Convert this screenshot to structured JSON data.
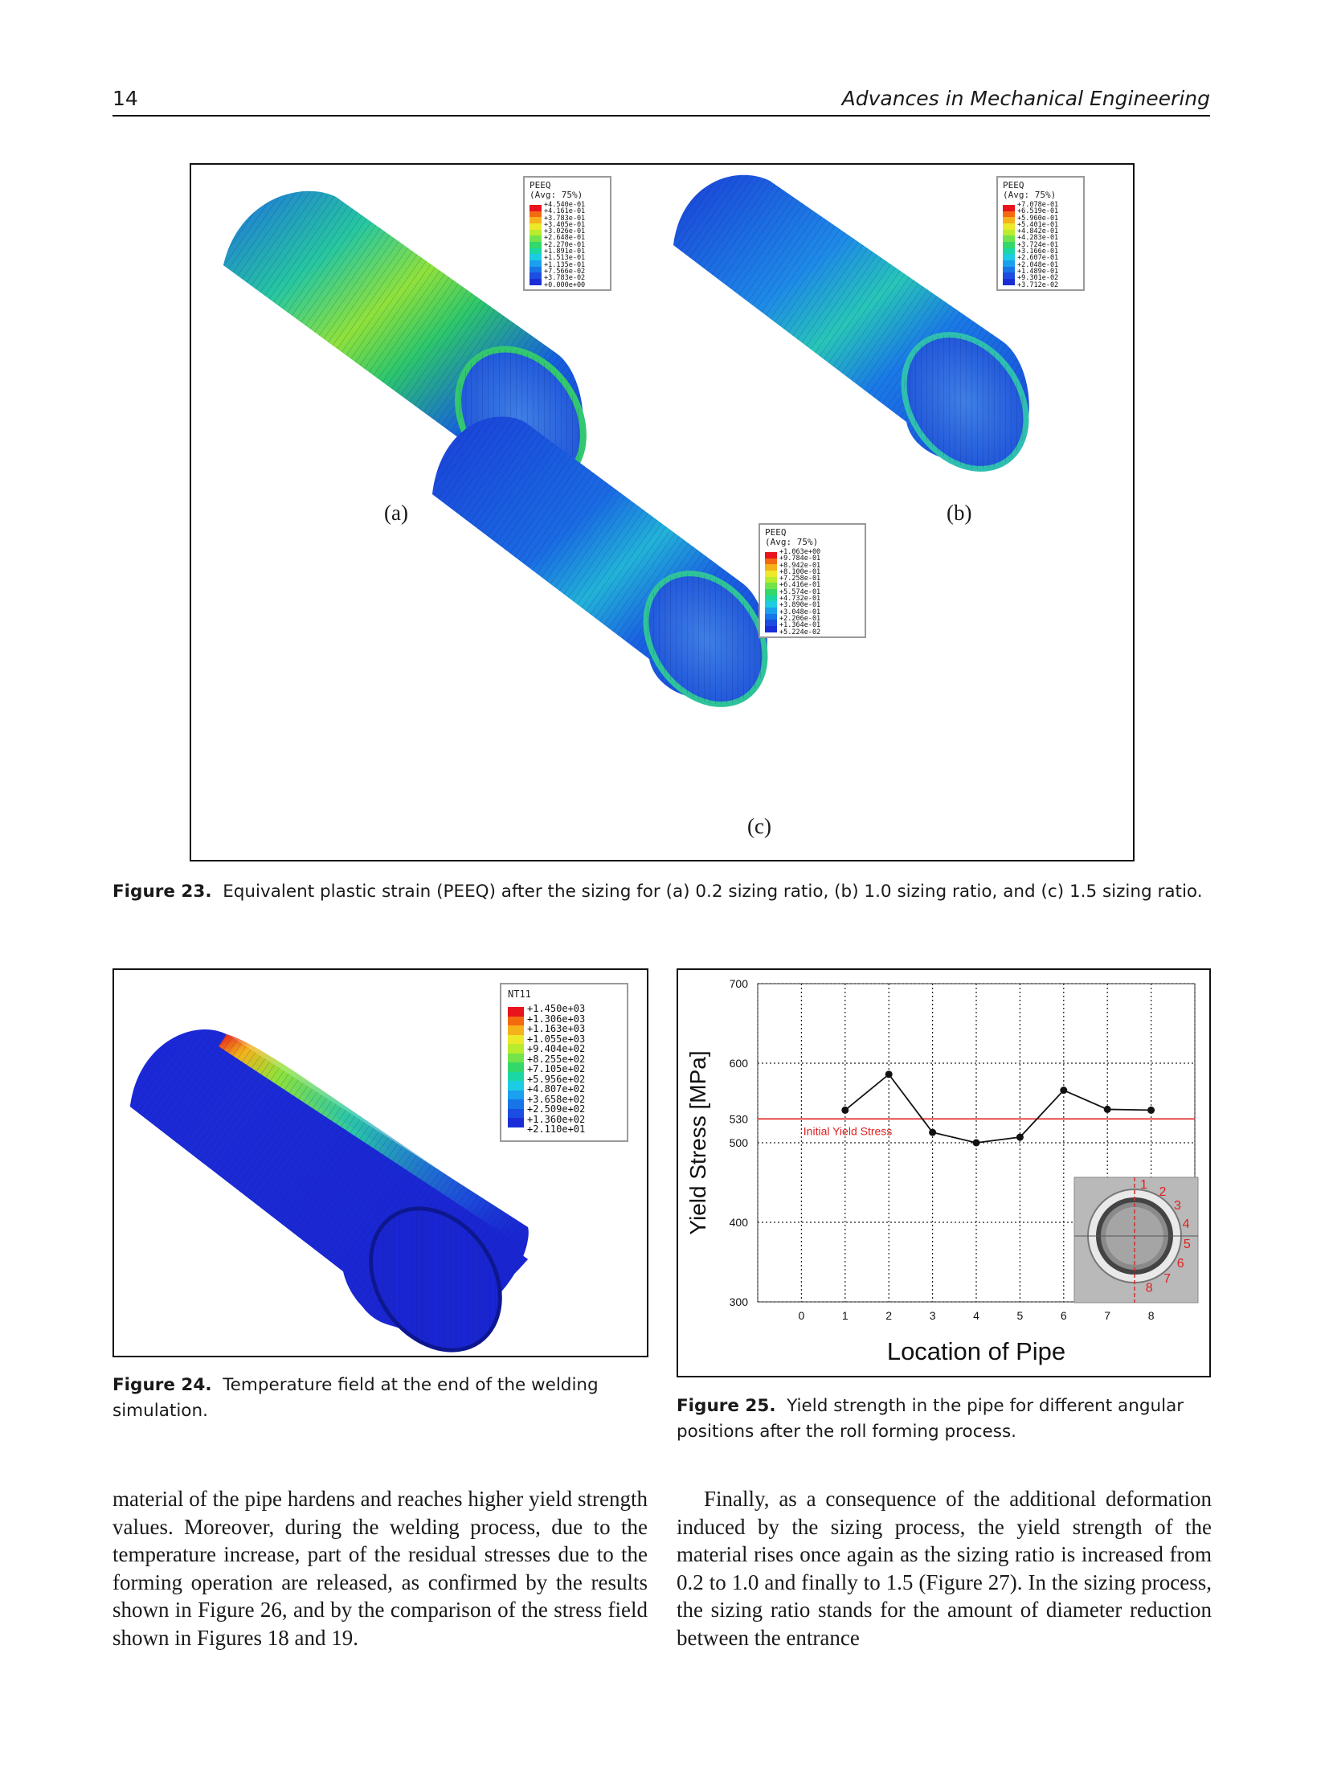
{
  "header": {
    "page_number": "14",
    "journal": "Advances in Mechanical Engineering"
  },
  "figure23": {
    "panels": [
      {
        "label": "(a)",
        "legend_title": "PEEQ",
        "legend_subtitle": "(Avg: 75%)",
        "values": [
          "+4.540e-01",
          "+4.161e-01",
          "+3.783e-01",
          "+3.405e-01",
          "+3.026e-01",
          "+2.648e-01",
          "+2.270e-01",
          "+1.891e-01",
          "+1.513e-01",
          "+1.135e-01",
          "+7.566e-02",
          "+3.783e-02",
          "+0.000e+00"
        ]
      },
      {
        "label": "(b)",
        "legend_title": "PEEQ",
        "legend_subtitle": "(Avg: 75%)",
        "values": [
          "+7.078e-01",
          "+6.519e-01",
          "+5.960e-01",
          "+5.401e-01",
          "+4.842e-01",
          "+4.283e-01",
          "+3.724e-01",
          "+3.166e-01",
          "+2.607e-01",
          "+2.048e-01",
          "+1.489e-01",
          "+9.301e-02",
          "+3.712e-02"
        ]
      },
      {
        "label": "(c)",
        "legend_title": "PEEQ",
        "legend_subtitle": "(Avg: 75%)",
        "values": [
          "+1.063e+00",
          "+9.784e-01",
          "+8.942e-01",
          "+8.100e-01",
          "+7.258e-01",
          "+6.416e-01",
          "+5.574e-01",
          "+4.732e-01",
          "+3.890e-01",
          "+3.048e-01",
          "+2.206e-01",
          "+1.364e-01",
          "+5.224e-02"
        ]
      }
    ],
    "caption_label": "Figure 23.",
    "caption_text": "Equivalent plastic strain (PEEQ) after the sizing for (a) 0.2 sizing ratio, (b) 1.0 sizing ratio, and (c) 1.5 sizing ratio."
  },
  "figure24": {
    "legend_title": "NT11",
    "values": [
      "+1.450e+03",
      "+1.306e+03",
      "+1.163e+03",
      "+1.055e+03",
      "+9.404e+02",
      "+8.255e+02",
      "+7.105e+02",
      "+5.956e+02",
      "+4.807e+02",
      "+3.658e+02",
      "+2.509e+02",
      "+1.360e+02",
      "+2.110e+01"
    ],
    "caption_label": "Figure 24.",
    "caption_text": "Temperature field at the end of the welding simulation."
  },
  "figure25": {
    "caption_label": "Figure 25.",
    "caption_text": "Yield strength in the pipe for different angular positions after the roll forming process.",
    "inset_labels": [
      "1",
      "2",
      "3",
      "4",
      "5",
      "6",
      "7",
      "8"
    ]
  },
  "chart_data": {
    "type": "line",
    "title": "",
    "xlabel": "Location of Pipe",
    "ylabel": "Yield Stress [MPa]",
    "x_ticks": [
      "0",
      "1",
      "2",
      "3",
      "4",
      "5",
      "6",
      "7",
      "8"
    ],
    "y_ticks": [
      "300",
      "400",
      "500",
      "530",
      "600",
      "700"
    ],
    "xlim": [
      -1,
      9
    ],
    "ylim": [
      300,
      700
    ],
    "grid": true,
    "series": [
      {
        "x": [
          1,
          2,
          3,
          4,
          5,
          6,
          7,
          8
        ],
        "values": [
          541,
          586,
          513,
          500,
          507,
          566,
          542,
          541
        ]
      }
    ],
    "reference_line": {
      "y": 530,
      "label": "Initial Yield Stress",
      "color": "#e02020"
    },
    "colors": {
      "series": "#111111",
      "reference": "#e02020"
    }
  },
  "body": {
    "left": "material of the pipe hardens and reaches higher yield strength values. Moreover, during the welding process, due to the temperature increase, part of the residual stresses due to the forming operation are released, as confirmed by the results shown in Figure 26, and by the comparison of the stress field shown in Figures 18 and 19.",
    "right": "Finally, as a consequence of the additional deformation induced by the sizing process, the yield strength of the material rises once again as the sizing ratio is increased from 0.2 to 1.0 and finally to 1.5 (Figure 27). In the sizing process, the sizing ratio stands for the amount of diameter reduction between the entrance"
  },
  "colors": {
    "contour_scale": [
      "#e8131c",
      "#f36a10",
      "#f5b21a",
      "#ece82a",
      "#b9ec2e",
      "#72e34a",
      "#32d869",
      "#1bd7a4",
      "#1ccce2",
      "#1aa0ef",
      "#1875e8",
      "#1b4ee0",
      "#1a2ed8"
    ]
  }
}
